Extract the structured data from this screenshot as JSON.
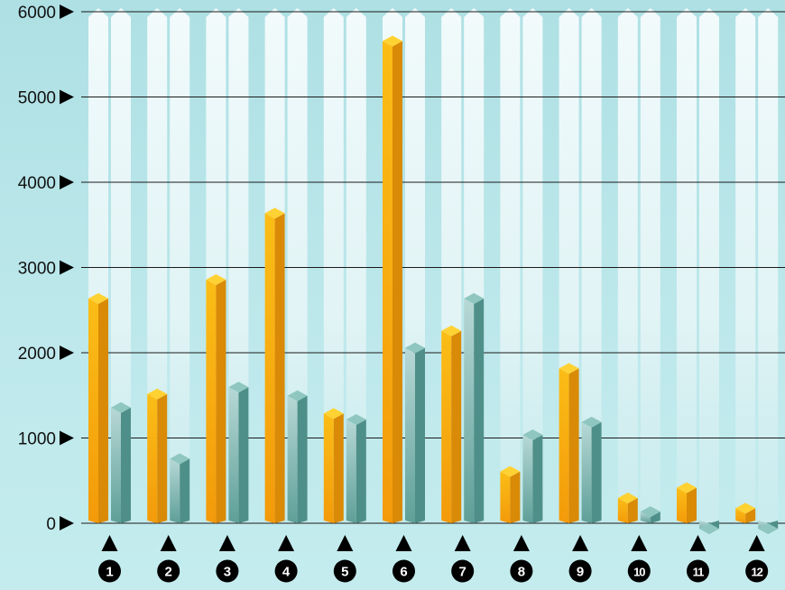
{
  "chart_data": {
    "type": "bar",
    "categories": [
      "1",
      "2",
      "3",
      "4",
      "5",
      "6",
      "7",
      "8",
      "9",
      "10",
      "11",
      "12"
    ],
    "series": [
      {
        "values": [
          2700,
          1580,
          2920,
          3700,
          1350,
          5720,
          2320,
          670,
          1880,
          360,
          480,
          240
        ]
      },
      {
        "values": [
          1420,
          820,
          1660,
          1560,
          1280,
          2120,
          2700,
          1100,
          1250,
          200,
          0,
          0
        ]
      }
    ],
    "yticks": [
      0,
      1000,
      2000,
      3000,
      4000,
      5000,
      6000
    ],
    "ylim": [
      0,
      6000
    ],
    "grid": true,
    "legend": "none",
    "xlabel": "",
    "ylabel": "",
    "title": ""
  },
  "colors": {
    "series_front": [
      "#f9b81a",
      "#6aaca5"
    ],
    "series_side": [
      "#d98a07",
      "#4f8f89"
    ],
    "series_top": [
      "#ffd233",
      "#8fc7c0"
    ],
    "background_column": "#f2fafb",
    "grid": "#1a1a1a",
    "marker": "#000000"
  }
}
